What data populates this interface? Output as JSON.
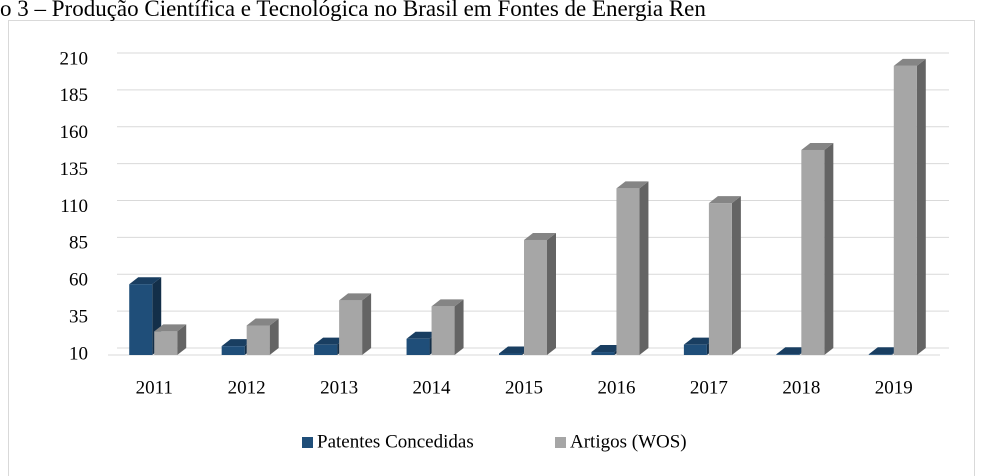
{
  "chart_data": {
    "type": "bar3d",
    "title": "o 3 – Produção Científica e Tecnológica no Brasil em Fontes de Energia Ren",
    "categories": [
      "2011",
      "2012",
      "2013",
      "2014",
      "2015",
      "2016",
      "2017",
      "2018",
      "2019"
    ],
    "series": [
      {
        "name": "Patentes Concedidas",
        "color": "#1f4e79",
        "values": [
          58,
          16,
          17,
          21,
          11,
          12,
          17,
          10.5,
          10.5
        ]
      },
      {
        "name": "Artigos (WOS)",
        "color": "#a6a6a6",
        "values": [
          26,
          30,
          47,
          43,
          88,
          123,
          113,
          149,
          206
        ]
      }
    ],
    "ylim": [
      10,
      210
    ],
    "yticks": [
      10,
      35,
      60,
      85,
      110,
      135,
      160,
      185,
      210
    ],
    "grid": true,
    "legend": "bottom"
  }
}
